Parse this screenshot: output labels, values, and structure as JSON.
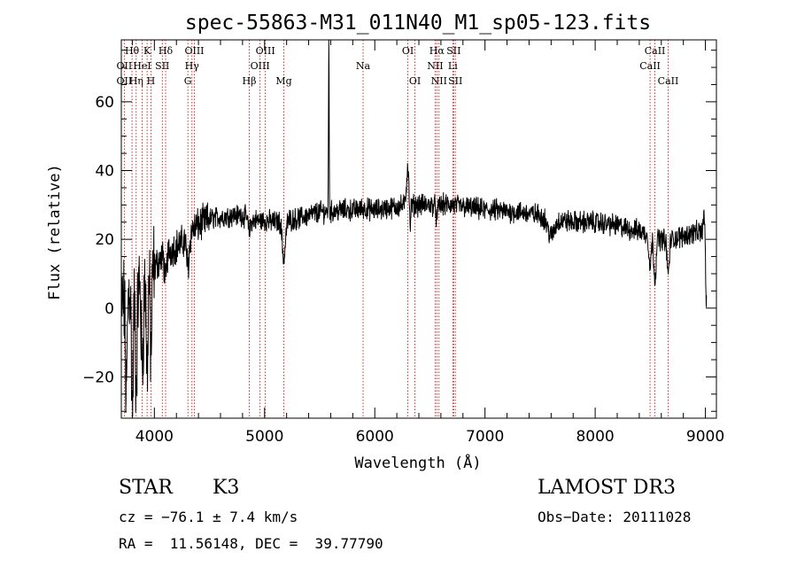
{
  "chart_data": {
    "type": "line",
    "title": "spec-55863-M31_011N40_M1_sp05-123.fits",
    "xlabel": "Wavelength (Å)",
    "ylabel": "Flux (relative)",
    "xlim": [
      3700,
      9100
    ],
    "ylim": [
      -32,
      78
    ],
    "xticks": [
      4000,
      5000,
      6000,
      7000,
      8000,
      9000
    ],
    "xtick_labels": [
      "4000",
      "5000",
      "6000",
      "7000",
      "8000",
      "9000"
    ],
    "yticks": [
      -20,
      0,
      20,
      40,
      60
    ],
    "ytick_labels": [
      "−20",
      "0",
      "20",
      "40",
      "60"
    ],
    "grid": false,
    "line_color": "#000000",
    "marker_color": "#cc0000",
    "continuum": [
      [
        3700,
        0
      ],
      [
        3750,
        5
      ],
      [
        3800,
        6
      ],
      [
        3850,
        7
      ],
      [
        3900,
        9
      ],
      [
        3950,
        11
      ],
      [
        4000,
        12
      ],
      [
        4050,
        14
      ],
      [
        4100,
        16
      ],
      [
        4150,
        17
      ],
      [
        4200,
        18
      ],
      [
        4250,
        19
      ],
      [
        4300,
        21
      ],
      [
        4350,
        23
      ],
      [
        4400,
        24
      ],
      [
        4450,
        25
      ],
      [
        4500,
        26
      ],
      [
        4600,
        26.5
      ],
      [
        4700,
        27
      ],
      [
        4800,
        27
      ],
      [
        4900,
        25.5
      ],
      [
        5000,
        25.5
      ],
      [
        5100,
        25
      ],
      [
        5200,
        25.5
      ],
      [
        5300,
        26
      ],
      [
        5400,
        27
      ],
      [
        5500,
        28
      ],
      [
        5600,
        28
      ],
      [
        5700,
        28.5
      ],
      [
        5800,
        28.5
      ],
      [
        5900,
        29
      ],
      [
        6000,
        28.5
      ],
      [
        6100,
        29
      ],
      [
        6200,
        29.5
      ],
      [
        6300,
        30
      ],
      [
        6400,
        30
      ],
      [
        6500,
        30
      ],
      [
        6600,
        30
      ],
      [
        6700,
        30
      ],
      [
        6800,
        29.5
      ],
      [
        6900,
        29
      ],
      [
        7000,
        28.5
      ],
      [
        7100,
        28.5
      ],
      [
        7200,
        28
      ],
      [
        7300,
        28
      ],
      [
        7400,
        27.5
      ],
      [
        7500,
        27
      ],
      [
        7600,
        26
      ],
      [
        7700,
        25.5
      ],
      [
        7800,
        25
      ],
      [
        7900,
        25
      ],
      [
        8000,
        25
      ],
      [
        8100,
        24.5
      ],
      [
        8200,
        24
      ],
      [
        8300,
        23
      ],
      [
        8400,
        22.5
      ],
      [
        8500,
        21
      ],
      [
        8600,
        20
      ],
      [
        8700,
        20
      ],
      [
        8800,
        21
      ],
      [
        8900,
        22
      ],
      [
        9000,
        22
      ]
    ],
    "features": [
      {
        "x": 3745,
        "depth": -30,
        "width": 8
      },
      {
        "x": 3800,
        "depth": -35,
        "width": 8
      },
      {
        "x": 3835,
        "depth": -30,
        "width": 8
      },
      {
        "x": 3890,
        "depth": -25,
        "width": 10
      },
      {
        "x": 3934,
        "depth": -28,
        "width": 8
      },
      {
        "x": 3969,
        "depth": -24,
        "width": 8
      },
      {
        "x": 4102,
        "depth": -8,
        "width": 10
      },
      {
        "x": 4305,
        "depth": -9,
        "width": 12
      },
      {
        "x": 4861,
        "depth": -4,
        "width": 10
      },
      {
        "x": 5175,
        "depth": -11,
        "width": 14
      },
      {
        "x": 5583,
        "depth": 50,
        "width": 3
      },
      {
        "x": 6300,
        "depth": 11,
        "width": 12
      },
      {
        "x": 6320,
        "depth": -9,
        "width": 5
      },
      {
        "x": 6563,
        "depth": -4,
        "width": 8
      },
      {
        "x": 7600,
        "depth": -5,
        "width": 30
      },
      {
        "x": 8498,
        "depth": -9,
        "width": 10
      },
      {
        "x": 8542,
        "depth": -12,
        "width": 10
      },
      {
        "x": 8662,
        "depth": -10,
        "width": 10
      },
      {
        "x": 8990,
        "depth": 6,
        "width": 8
      },
      {
        "x": 9010,
        "depth": -22,
        "width": 8
      }
    ],
    "noise_amplitude": 2.5,
    "line_markers": [
      {
        "x": 3727,
        "label": "OII",
        "row": 2
      },
      {
        "x": 3727,
        "label": "OII",
        "row": 3
      },
      {
        "x": 3797,
        "label": "Hθ",
        "row": 1
      },
      {
        "x": 3835,
        "label": "Hη",
        "row": 3
      },
      {
        "x": 3889,
        "label": "HeI",
        "row": 2
      },
      {
        "x": 3934,
        "label": "K",
        "row": 1
      },
      {
        "x": 3969,
        "label": "H",
        "row": 3
      },
      {
        "x": 4072,
        "label": "SII",
        "row": 2
      },
      {
        "x": 4102,
        "label": "Hδ",
        "row": 1
      },
      {
        "x": 4304,
        "label": "G",
        "row": 3
      },
      {
        "x": 4341,
        "label": "Hγ",
        "row": 2
      },
      {
        "x": 4363,
        "label": "OIII",
        "row": 1
      },
      {
        "x": 4861,
        "label": "Hβ",
        "row": 3
      },
      {
        "x": 4959,
        "label": "OIII",
        "row": 2
      },
      {
        "x": 5007,
        "label": "OIII",
        "row": 1
      },
      {
        "x": 5175,
        "label": "Mg",
        "row": 3
      },
      {
        "x": 5894,
        "label": "Na",
        "row": 2
      },
      {
        "x": 6300,
        "label": "OI",
        "row": 1
      },
      {
        "x": 6364,
        "label": "OI",
        "row": 3
      },
      {
        "x": 6548,
        "label": "NII",
        "row": 2
      },
      {
        "x": 6563,
        "label": "Hα",
        "row": 1
      },
      {
        "x": 6583,
        "label": "NII",
        "row": 3
      },
      {
        "x": 6708,
        "label": "Li",
        "row": 2
      },
      {
        "x": 6716,
        "label": "SII",
        "row": 1
      },
      {
        "x": 6731,
        "label": "SII",
        "row": 3
      },
      {
        "x": 8498,
        "label": "CaII",
        "row": 2
      },
      {
        "x": 8542,
        "label": "CaII",
        "row": 1
      },
      {
        "x": 8662,
        "label": "CaII",
        "row": 3
      }
    ]
  },
  "info": {
    "object_class": "STAR",
    "subclass": "K3",
    "survey": "LAMOST DR3",
    "cz": "cz = −76.1 ± 7.4 km/s",
    "obs_date": "Obs−Date: 20111028",
    "coords": "RA =  11.56148, DEC =  39.77790"
  }
}
